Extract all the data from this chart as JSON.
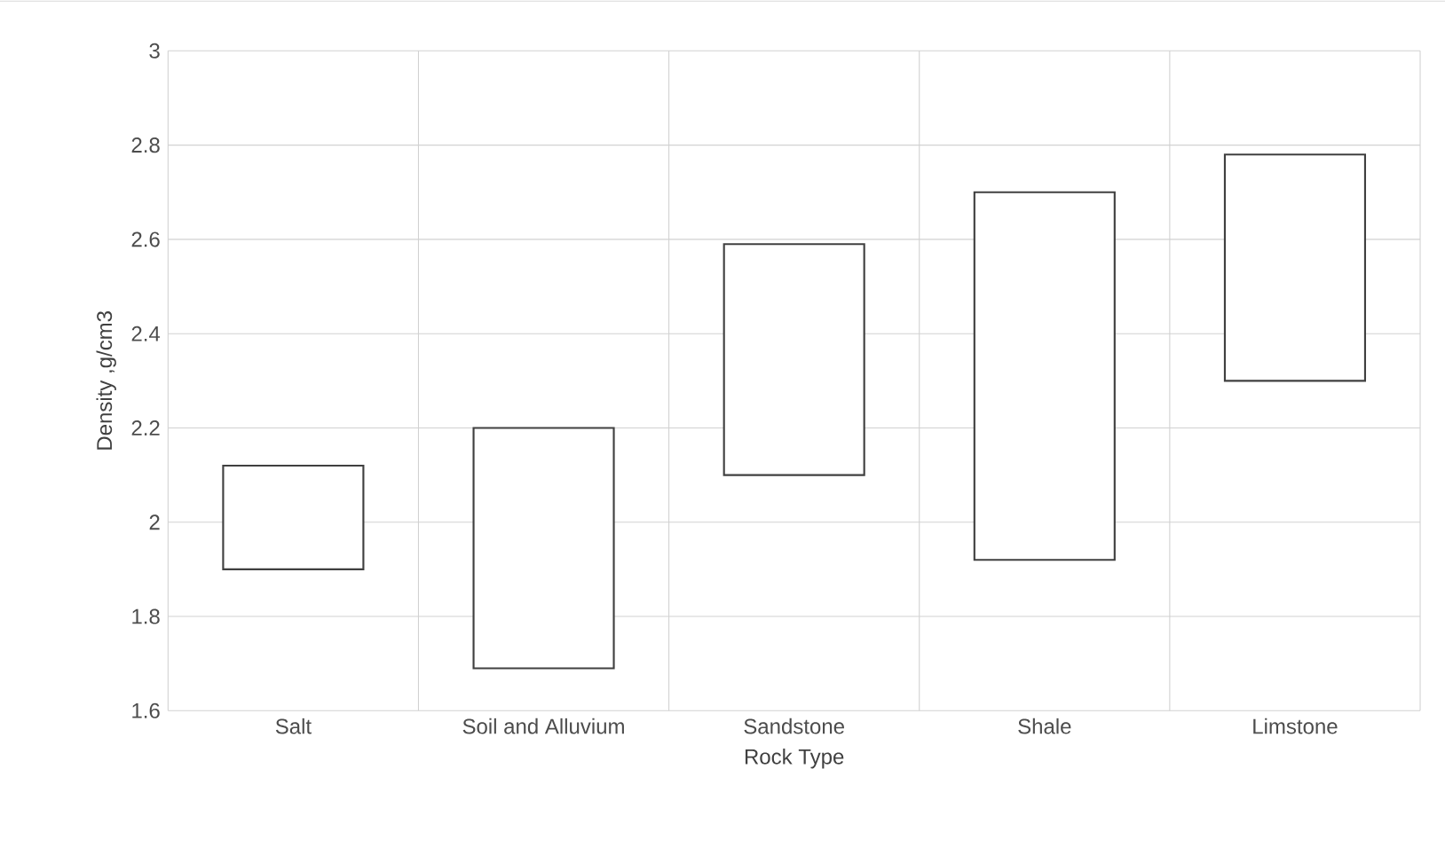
{
  "chart_data": {
    "type": "bar",
    "xlabel": "Rock Type",
    "ylabel": "Density ,g/cm3",
    "categories": [
      "Salt",
      "Soil and Alluvium",
      "Sandstone",
      "Shale",
      "Limstone"
    ],
    "base": [
      1.9,
      1.69,
      2.1,
      1.92,
      2.3
    ],
    "values": [
      0.22,
      0.51,
      0.49,
      0.78,
      0.48
    ],
    "color": "#ffffff",
    "ylim": [
      1.6,
      3
    ],
    "yticks": [
      1.6,
      1.8,
      2,
      2.2,
      2.4,
      2.6,
      2.8,
      3
    ],
    "grid": true
  }
}
